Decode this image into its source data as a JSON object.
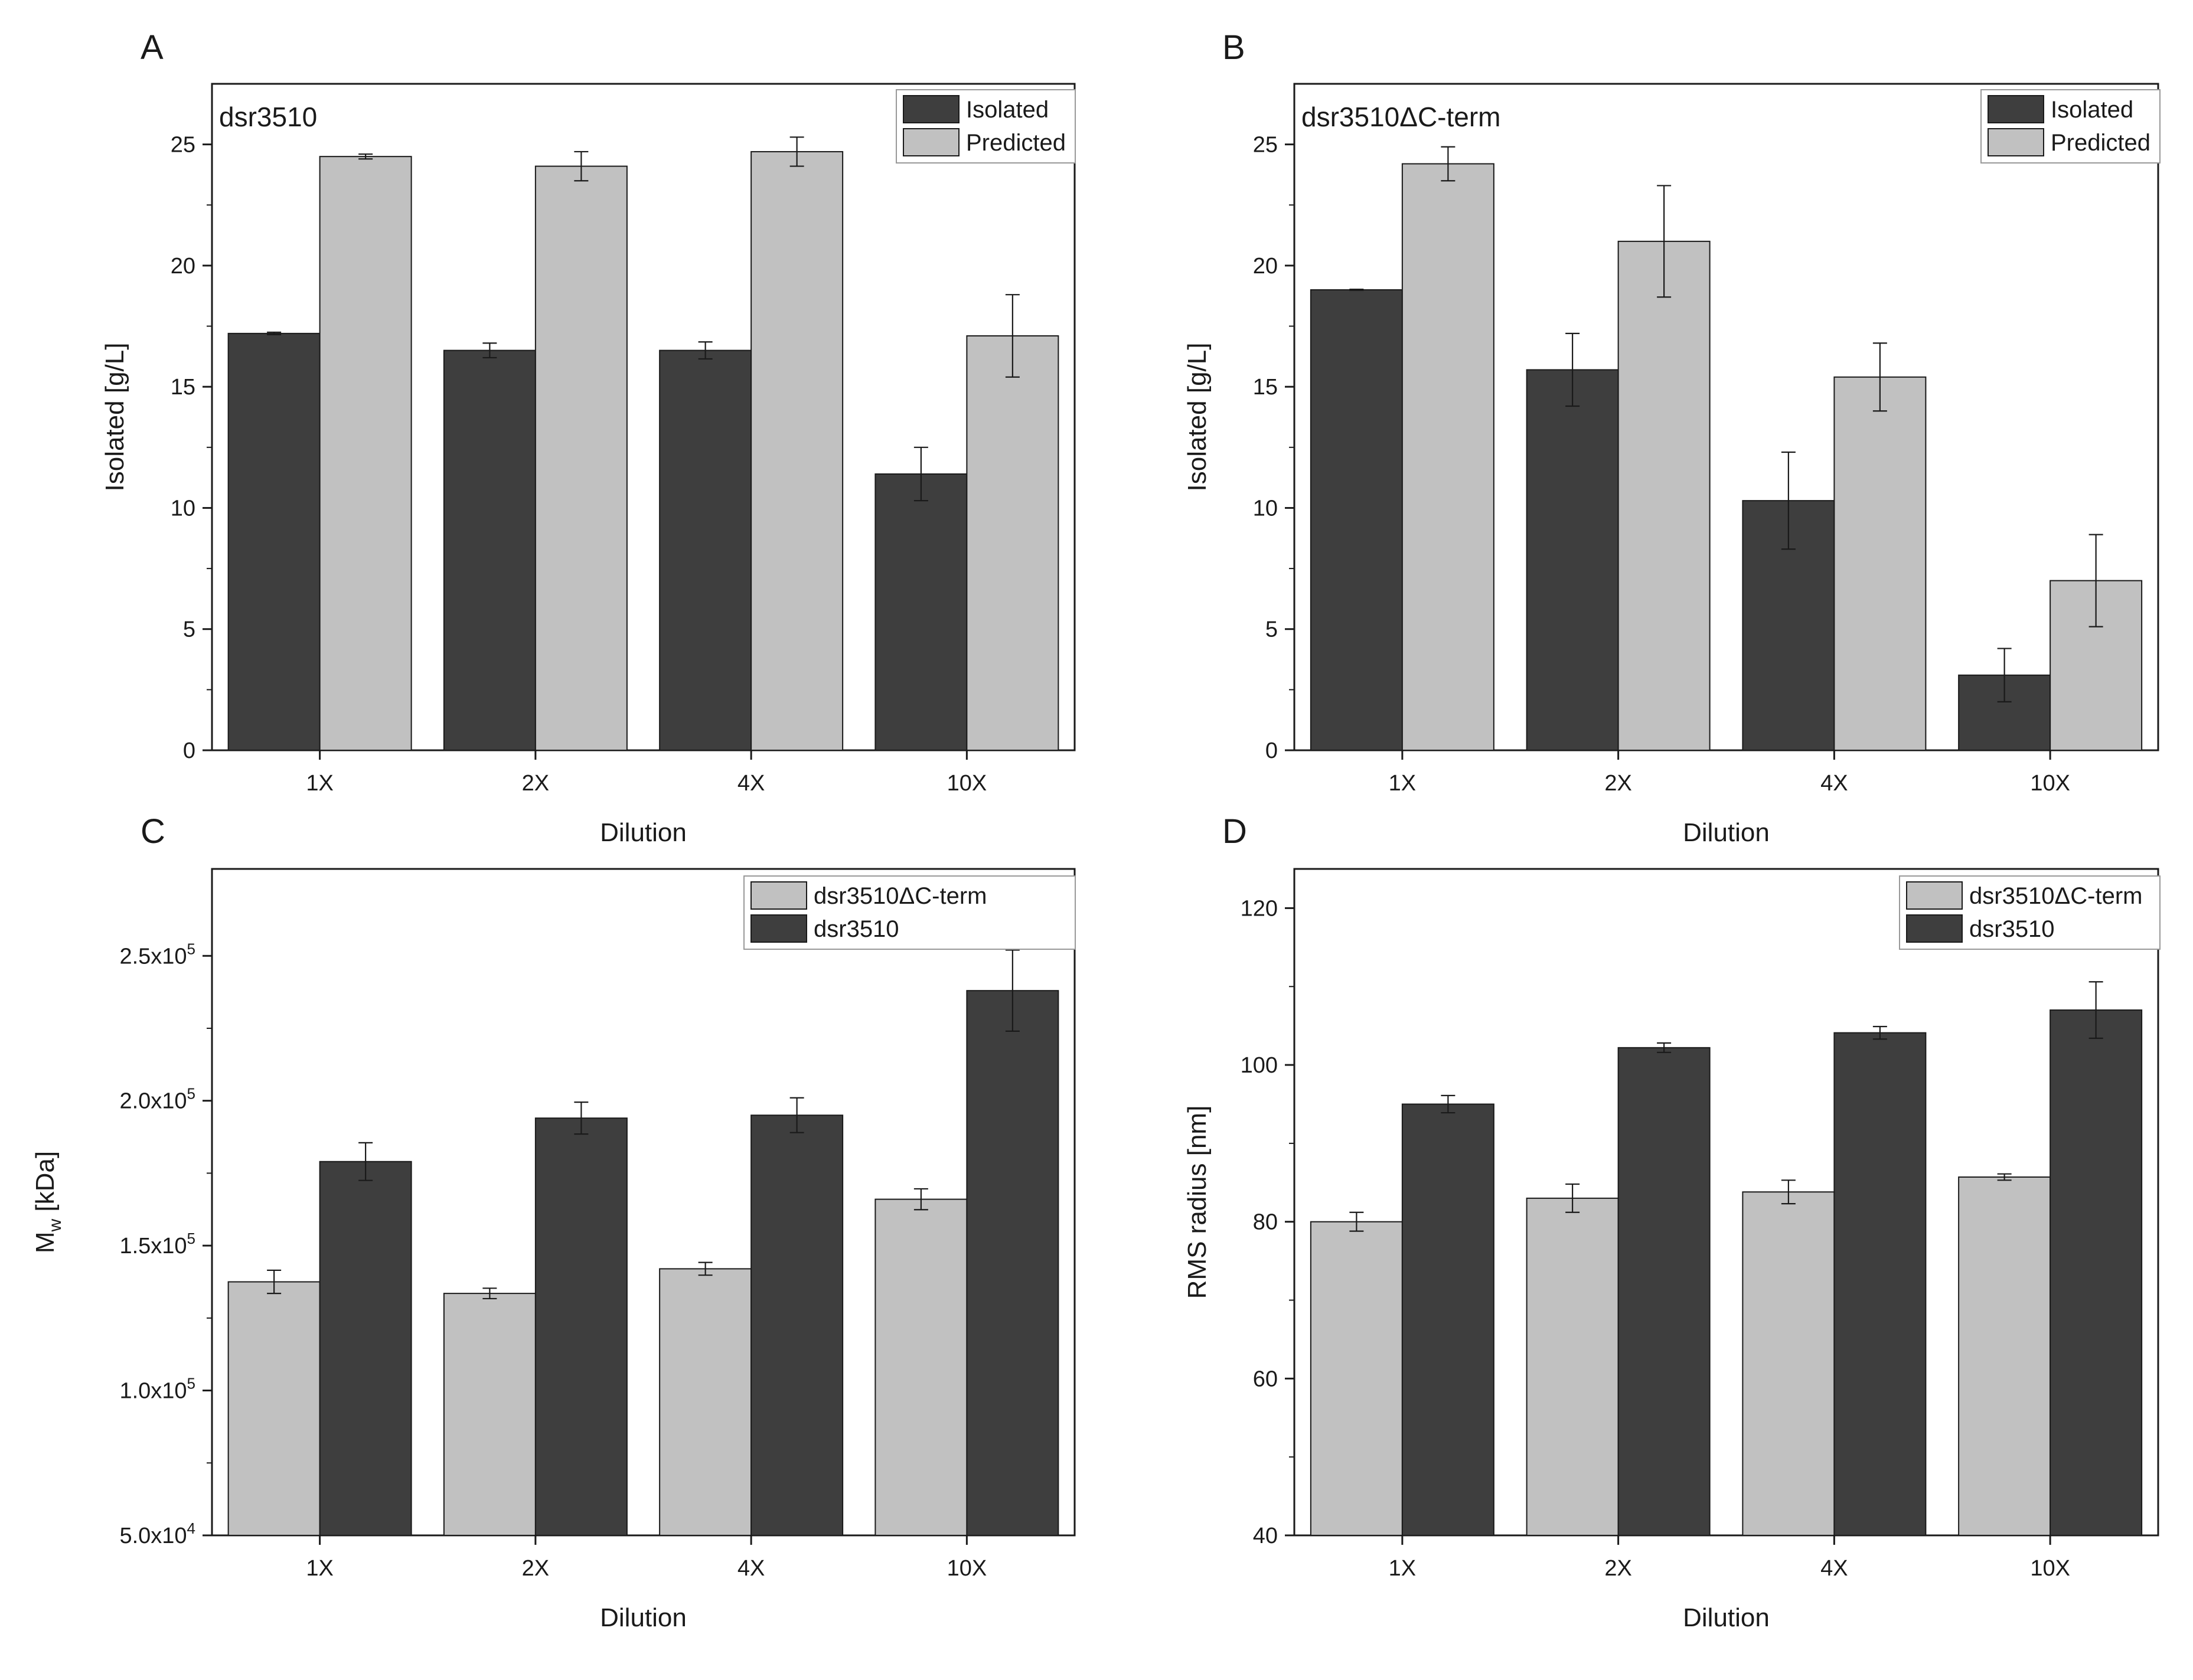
{
  "colors": {
    "dark": "#3e3e3e",
    "light": "#c1c1c1",
    "axis": "#1a1a1a",
    "errorbar": "#1a1a1a",
    "background": "#ffffff"
  },
  "chart_data": [
    {
      "panel": "A",
      "type": "bar",
      "inset_title": "dsr3510",
      "xlabel": "Dilution",
      "ylabel": "Isolated [g/L]",
      "categories": [
        "1X",
        "2X",
        "4X",
        "10X"
      ],
      "ylim": [
        0,
        27.5
      ],
      "yticks": [
        0,
        5,
        10,
        15,
        20,
        25
      ],
      "ytick_labels": [
        "0",
        "5",
        "10",
        "15",
        "20",
        "25"
      ],
      "legend_position": "top-right",
      "series": [
        {
          "name": "Isolated",
          "color_key": "dark",
          "values": [
            17.2,
            16.5,
            16.5,
            11.4
          ],
          "errors": [
            0.05,
            0.3,
            0.35,
            1.1
          ]
        },
        {
          "name": "Predicted",
          "color_key": "light",
          "values": [
            24.5,
            24.1,
            24.7,
            17.1
          ],
          "errors": [
            0.1,
            0.6,
            0.6,
            1.7
          ]
        }
      ]
    },
    {
      "panel": "B",
      "type": "bar",
      "inset_title": "dsr3510ΔC-term",
      "xlabel": "Dilution",
      "ylabel": "Isolated [g/L]",
      "categories": [
        "1X",
        "2X",
        "4X",
        "10X"
      ],
      "ylim": [
        0,
        27.5
      ],
      "yticks": [
        0,
        5,
        10,
        15,
        20,
        25
      ],
      "ytick_labels": [
        "0",
        "5",
        "10",
        "15",
        "20",
        "25"
      ],
      "legend_position": "top-right",
      "series": [
        {
          "name": "Isolated",
          "color_key": "dark",
          "values": [
            19.0,
            15.7,
            10.3,
            3.1
          ],
          "errors": [
            0.02,
            1.5,
            2.0,
            1.1
          ]
        },
        {
          "name": "Predicted",
          "color_key": "light",
          "values": [
            24.2,
            21.0,
            15.4,
            7.0
          ],
          "errors": [
            0.7,
            2.3,
            1.4,
            1.9
          ]
        }
      ]
    },
    {
      "panel": "C",
      "type": "bar",
      "inset_title": "",
      "xlabel": "Dilution",
      "ylabel": "M",
      "ylabel_subscript": "w",
      "ylabel_suffix": " [kDa]",
      "categories": [
        "1X",
        "2X",
        "4X",
        "10X"
      ],
      "ylim": [
        50000,
        280000
      ],
      "yticks": [
        50000,
        100000,
        150000,
        200000,
        250000
      ],
      "ytick_labels": [
        {
          "mantissa": "5.0x10",
          "exp": "4"
        },
        {
          "mantissa": "1.0x10",
          "exp": "5"
        },
        {
          "mantissa": "1.5x10",
          "exp": "5"
        },
        {
          "mantissa": "2.0x10",
          "exp": "5"
        },
        {
          "mantissa": "2.5x10",
          "exp": "5"
        }
      ],
      "legend_position": "top-right",
      "series": [
        {
          "name": "dsr3510ΔC-term",
          "color_key": "light",
          "values": [
            137500,
            133500,
            142000,
            166000
          ],
          "errors": [
            4000,
            1800,
            2200,
            3600
          ]
        },
        {
          "name": "dsr3510",
          "color_key": "dark",
          "values": [
            179000,
            194000,
            195000,
            238000
          ],
          "errors": [
            6500,
            5500,
            6000,
            14000
          ]
        }
      ]
    },
    {
      "panel": "D",
      "type": "bar",
      "inset_title": "",
      "xlabel": "Dilution",
      "ylabel": "RMS radius [nm]",
      "categories": [
        "1X",
        "2X",
        "4X",
        "10X"
      ],
      "ylim": [
        40,
        125
      ],
      "yticks": [
        40,
        60,
        80,
        100,
        120
      ],
      "ytick_labels": [
        "40",
        "60",
        "80",
        "100",
        "120"
      ],
      "legend_position": "top-right",
      "series": [
        {
          "name": "dsr3510ΔC-term",
          "color_key": "light",
          "values": [
            80,
            83,
            83.8,
            85.7
          ],
          "errors": [
            1.2,
            1.8,
            1.5,
            0.4
          ]
        },
        {
          "name": "dsr3510",
          "color_key": "dark",
          "values": [
            95,
            102.2,
            104.1,
            107
          ],
          "errors": [
            1.1,
            0.6,
            0.8,
            3.6
          ]
        }
      ]
    }
  ]
}
